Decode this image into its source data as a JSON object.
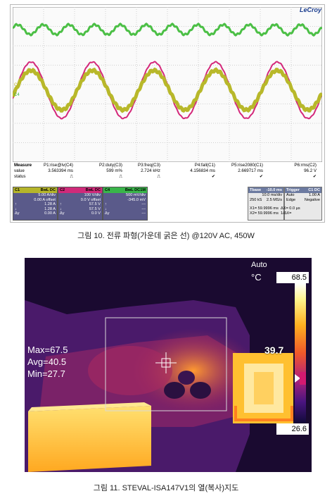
{
  "figure10": {
    "brand": "LeCroy",
    "measure_header": {
      "label": "Measure",
      "value_label": "value",
      "status_label": "status"
    },
    "measurements": [
      {
        "name": "P1:rise@lv(C4)",
        "value": "3.563394 ms",
        "status": "⎍"
      },
      {
        "name": "P2:duty(C3)",
        "value": "599 m%",
        "status": "⎍"
      },
      {
        "name": "P3:freq(C3)",
        "value": "2.724 kHz",
        "status": "⎍"
      },
      {
        "name": "P4:fall(C1)",
        "value": "4.156834 ms",
        "status": "✔"
      },
      {
        "name": "P5:rise2080(C1)",
        "value": "2.669717 ms",
        "status": "✔"
      },
      {
        "name": "P6:rms(C2)",
        "value": "96.2 V",
        "status": "✔"
      }
    ],
    "channels": [
      {
        "name": "C1",
        "hd": "BwL DC",
        "color": "#b5b52a",
        "l1": "5.00 A/div",
        "l2": "0.00 A offset",
        "l3": "1.28 A",
        "l4": "1.28 A",
        "l5": "0.00 A"
      },
      {
        "name": "C2",
        "hd": "BwL DC",
        "color": "#d02a7a",
        "l1": "100 V/div",
        "l2": "0.0 V offset",
        "l3": "57.5 V",
        "l4": "57.5 V",
        "l5": "0.0 V"
      },
      {
        "name": "C4",
        "hd": "BwL DC1M",
        "color": "#39b54a",
        "l1": "500 mV/div",
        "l2": "-345.0 mV",
        "l3": "---",
        "l4": "---",
        "l5": "---"
      }
    ],
    "timebase": {
      "label": "Tbase",
      "value": "-10.0 ms",
      "l1": "10.0 ms/div",
      "l2a": "250 kS",
      "l2b": "2.5 MS/s"
    },
    "trigger": {
      "label": "Trigger",
      "mode": "C1 DC",
      "l1a": "Auto",
      "l1b": "1.00 A",
      "l2a": "Edge",
      "l2b": "Negative"
    },
    "cursors": {
      "x1": "X1=  59.9996 ms",
      "dx": "ΔX=  0.0 µs",
      "x2": "X2=  59.9996 ms",
      "inv_dx": "1/ΔX="
    },
    "markers": {
      "c1": "C1",
      "c4": "C4"
    },
    "caption": "그림 10. 전류 파형(가운데 굵은 선) @120V AC, 450W"
  },
  "figure11": {
    "stats": {
      "max": "Max=67.5",
      "avg": "Avg=40.5",
      "min": "Min=27.7"
    },
    "mode": "Auto",
    "unit": "°C",
    "scale_max": "68.5",
    "scale_min": "26.6",
    "spot_value": "39.7",
    "caption": "그림 11. STEVAL-ISA147V1의 열(복사)지도"
  }
}
